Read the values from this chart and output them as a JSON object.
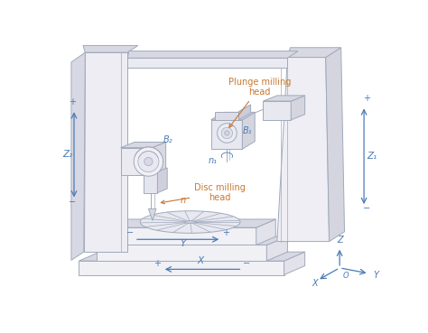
{
  "bg_color": "#ffffff",
  "line_color": "#a0aabb",
  "blue_color": "#4a7ab5",
  "orange_color": "#c87832",
  "fill_front": "#f0f0f5",
  "fill_side": "#e2e2ea",
  "fill_top": "#d8d8e2",
  "fill_dark": "#c8c8d5",
  "labels": {
    "plunge_milling_head": "Plunge milling\nhead",
    "disc_milling_head": "Disc milling\nhead",
    "B1": "B₁",
    "B2": "B₂",
    "n": "n",
    "n1": "n₁",
    "Z1": "Z₁",
    "Z2": "Z₂",
    "X": "X",
    "Y": "Y",
    "Z": "Z",
    "O": "O"
  },
  "figsize": [
    4.74,
    3.69
  ],
  "dpi": 100
}
